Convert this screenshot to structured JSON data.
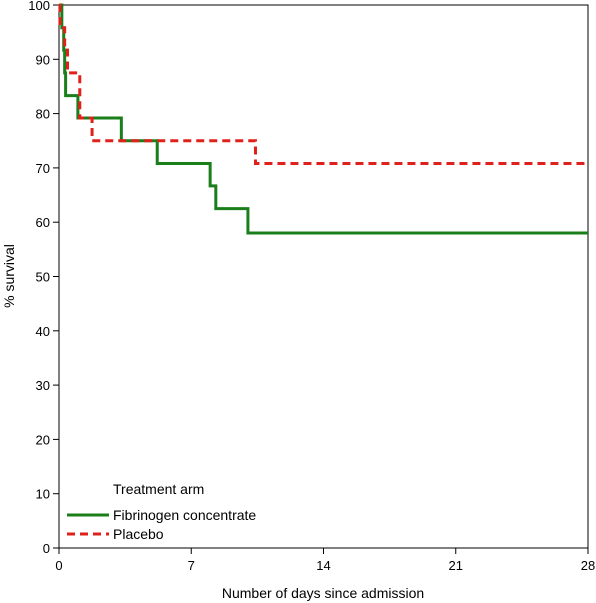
{
  "chart_data": {
    "type": "line",
    "subtype": "kaplan-meier step",
    "xlabel": "Number of days since admission",
    "ylabel": "% survival",
    "xlim": [
      0,
      28
    ],
    "ylim": [
      0,
      100
    ],
    "x_ticks": [
      0,
      7,
      14,
      21,
      28
    ],
    "y_ticks": [
      0,
      10,
      20,
      30,
      40,
      50,
      60,
      70,
      80,
      90,
      100
    ],
    "grid": false,
    "legend": {
      "title": "Treatment arm",
      "placement": "bottom-left"
    },
    "series": [
      {
        "name": "Fibrinogen concentrate",
        "color": "#1a7f1a",
        "style": "solid",
        "points": [
          [
            0,
            100
          ],
          [
            0.15,
            95.8
          ],
          [
            0.25,
            91.7
          ],
          [
            0.3,
            87.5
          ],
          [
            0.35,
            83.3
          ],
          [
            1.0,
            79.2
          ],
          [
            3.3,
            75.0
          ],
          [
            5.2,
            70.8
          ],
          [
            8.0,
            66.7
          ],
          [
            8.3,
            62.5
          ],
          [
            10.0,
            58.0
          ],
          [
            28,
            58.0
          ]
        ]
      },
      {
        "name": "Placebo",
        "color": "#e0201b",
        "style": "dashed",
        "points": [
          [
            0,
            100
          ],
          [
            0.05,
            95.8
          ],
          [
            0.3,
            91.7
          ],
          [
            0.45,
            87.5
          ],
          [
            1.1,
            79.2
          ],
          [
            1.75,
            75.0
          ],
          [
            10.4,
            70.8
          ],
          [
            28,
            70.8
          ]
        ]
      }
    ]
  }
}
